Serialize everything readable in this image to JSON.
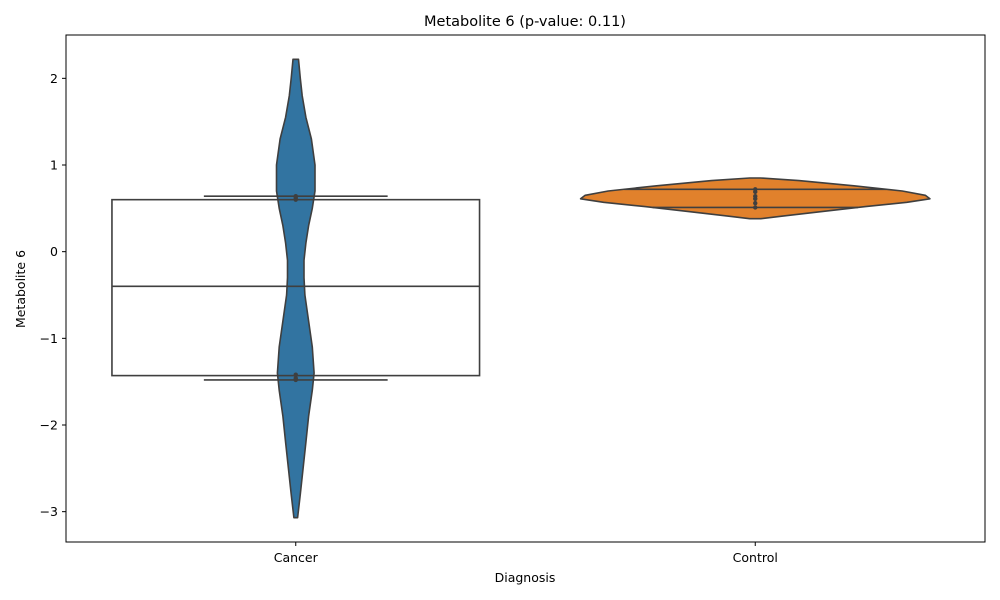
{
  "chart_data": {
    "type": "violin",
    "title": "Metabolite 6 (p-value: 0.11)",
    "xlabel": "Diagnosis",
    "ylabel": "Metabolite 6",
    "ylim": [
      -3.35,
      2.5
    ],
    "yticks": [
      2,
      1,
      0,
      -1,
      -2,
      -3
    ],
    "ytick_labels": [
      "2",
      "1",
      "0",
      "−1",
      "−2",
      "−3"
    ],
    "categories": [
      "Cancer",
      "Control"
    ],
    "colors": {
      "Cancer": "#3274a1",
      "Control": "#e1812c",
      "outline": "#3f3f3f"
    },
    "violins": [
      {
        "name": "Cancer",
        "color": "#3274a1",
        "ymin": -3.07,
        "ymax": 2.22,
        "profile": [
          [
            2.22,
            0.006
          ],
          [
            2.0,
            0.01
          ],
          [
            1.8,
            0.014
          ],
          [
            1.55,
            0.022
          ],
          [
            1.3,
            0.034
          ],
          [
            1.0,
            0.042
          ],
          [
            0.7,
            0.042
          ],
          [
            0.5,
            0.036
          ],
          [
            0.3,
            0.028
          ],
          [
            0.1,
            0.022
          ],
          [
            -0.1,
            0.018
          ],
          [
            -0.3,
            0.018
          ],
          [
            -0.5,
            0.02
          ],
          [
            -0.8,
            0.028
          ],
          [
            -1.1,
            0.036
          ],
          [
            -1.4,
            0.04
          ],
          [
            -1.6,
            0.036
          ],
          [
            -1.9,
            0.028
          ],
          [
            -2.2,
            0.022
          ],
          [
            -2.5,
            0.016
          ],
          [
            -2.8,
            0.01
          ],
          [
            -3.07,
            0.004
          ]
        ],
        "inner_lines": [
          0.64,
          -1.48
        ],
        "points": [
          0.62,
          0.6,
          0.64,
          -1.42,
          -1.46,
          -1.48
        ]
      },
      {
        "name": "Control",
        "color": "#e1812c",
        "ymin": 0.38,
        "ymax": 0.85,
        "profile": [
          [
            0.85,
            0.012
          ],
          [
            0.82,
            0.095
          ],
          [
            0.76,
            0.215
          ],
          [
            0.7,
            0.32
          ],
          [
            0.65,
            0.37
          ],
          [
            0.61,
            0.38
          ],
          [
            0.57,
            0.33
          ],
          [
            0.52,
            0.24
          ],
          [
            0.46,
            0.14
          ],
          [
            0.41,
            0.06
          ],
          [
            0.38,
            0.012
          ]
        ],
        "inner_lines": [
          0.72,
          0.51
        ],
        "points": [
          0.72,
          0.69,
          0.64,
          0.61,
          0.56,
          0.51
        ]
      }
    ],
    "box": {
      "category": "Cancer",
      "q1": -1.43,
      "median": -0.4,
      "q3": 0.6
    }
  }
}
